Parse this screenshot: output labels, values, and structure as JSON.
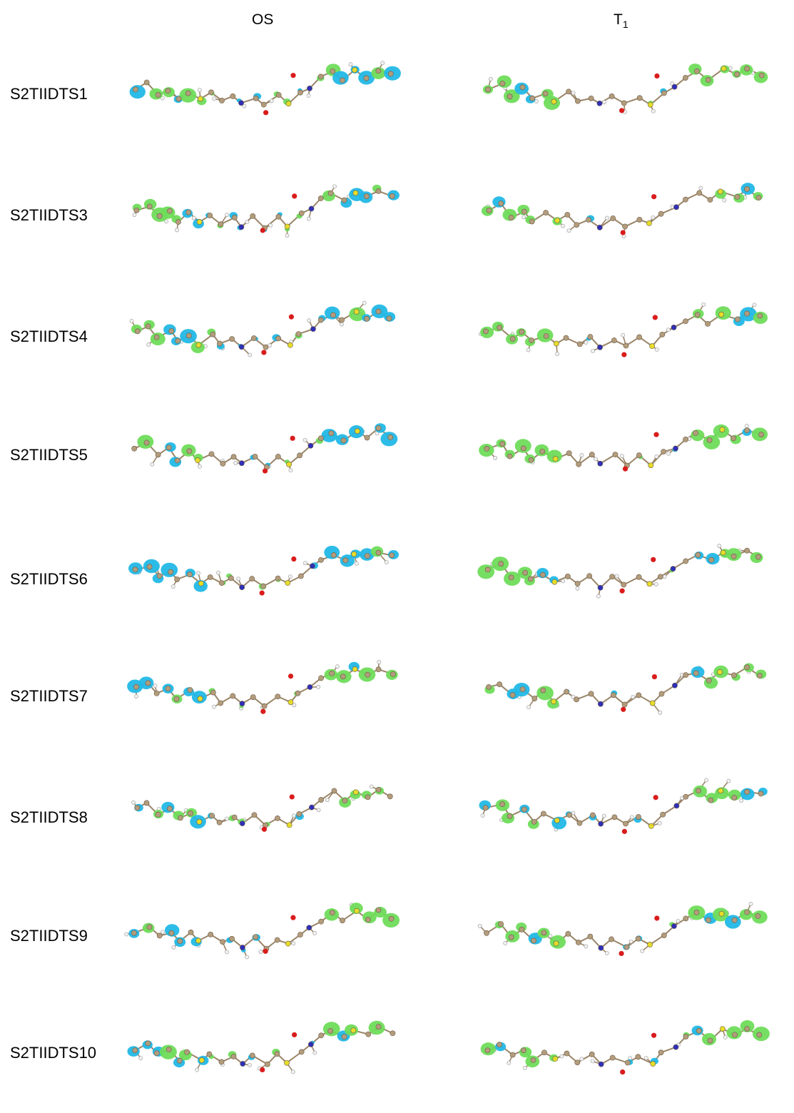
{
  "columns": {
    "os": {
      "label": "OS"
    },
    "t1": {
      "label": "T",
      "label_sub": "1"
    }
  },
  "molecules": [
    {
      "label": "S2TIIDTS1"
    },
    {
      "label": "S2TIIDTS3"
    },
    {
      "label": "S2TIIDTS4"
    },
    {
      "label": "S2TIIDTS5"
    },
    {
      "label": "S2TIIDTS6"
    },
    {
      "label": "S2TIIDTS7"
    },
    {
      "label": "S2TIIDTS8"
    },
    {
      "label": "S2TIIDTS9"
    },
    {
      "label": "S2TIIDTS10"
    }
  ],
  "colors": {
    "carbon": "#b39c7c",
    "hydrogen": "#f2f2f2",
    "nitrogen": "#2f2fb8",
    "oxygen": "#d91c1c",
    "sulfur": "#e6dc2a",
    "bond": "#9a8568",
    "lobe_green": "#6fdc5a",
    "lobe_blue": "#22b8e6"
  }
}
